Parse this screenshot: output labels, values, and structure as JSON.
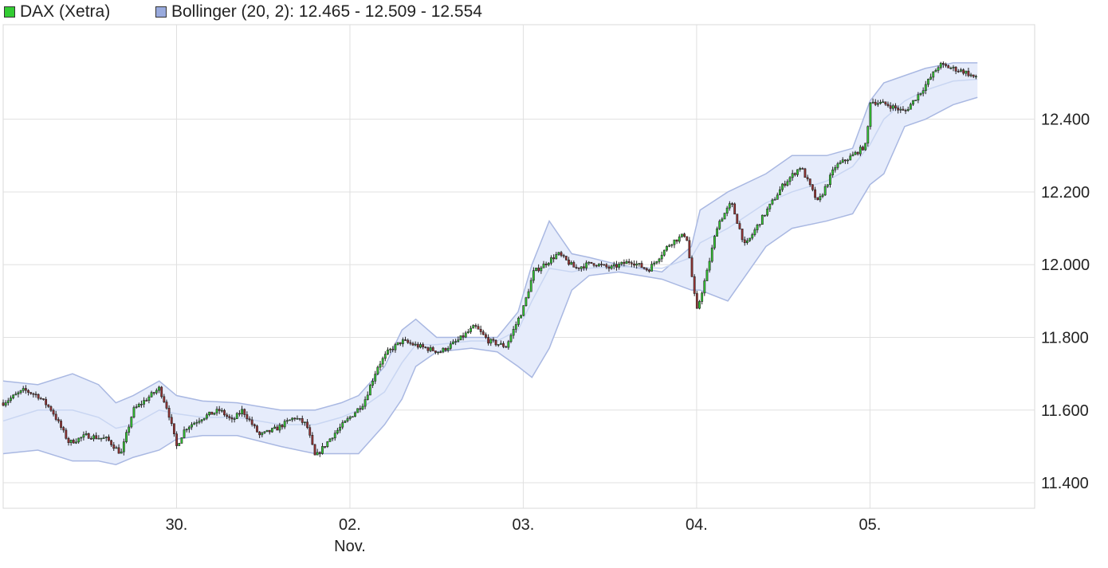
{
  "legend": {
    "series": {
      "label": "DAX (Xetra)",
      "color": "#33cc33"
    },
    "bands": {
      "label": "Bollinger (20, 2): 12.465 - 12.509 - 12.554",
      "color": "#99aadd"
    }
  },
  "chart_data": {
    "type": "candlestick",
    "series_name": "DAX (Xetra)",
    "indicator": "Bollinger (20, 2)",
    "indicator_values": {
      "lower": 12.465,
      "middle": 12.509,
      "upper": 12.554
    },
    "ylim": [
      11330,
      12660
    ],
    "y_ticks": [
      {
        "value": 11400,
        "label": "11.400"
      },
      {
        "value": 11600,
        "label": "11.600"
      },
      {
        "value": 11800,
        "label": "11.800"
      },
      {
        "value": 12000,
        "label": "12.000"
      },
      {
        "value": 12200,
        "label": "12.200"
      },
      {
        "value": 12400,
        "label": "12.400"
      }
    ],
    "x_range_days": [
      -1.0,
      4.95
    ],
    "x_ticks": [
      {
        "day": 0,
        "label": "30.",
        "sublabel": ""
      },
      {
        "day": 1,
        "label": "02.",
        "sublabel": "Nov."
      },
      {
        "day": 2,
        "label": "03.",
        "sublabel": ""
      },
      {
        "day": 3,
        "label": "04.",
        "sublabel": ""
      },
      {
        "day": 4,
        "label": "05.",
        "sublabel": ""
      }
    ],
    "grid": true,
    "up_color": "#33cc33",
    "down_color": "#993333",
    "band_fill": "#e6ecfb",
    "band_line": "#a9b8e2",
    "mid_line": "#c9d6f2",
    "price_path": [
      [
        -1.0,
        11620
      ],
      [
        -0.88,
        11655
      ],
      [
        -0.8,
        11640
      ],
      [
        -0.72,
        11600
      ],
      [
        -0.62,
        11510
      ],
      [
        -0.52,
        11530
      ],
      [
        -0.4,
        11520
      ],
      [
        -0.32,
        11480
      ],
      [
        -0.25,
        11600
      ],
      [
        -0.15,
        11640
      ],
      [
        -0.1,
        11660
      ],
      [
        -0.05,
        11600
      ],
      [
        0.0,
        11500
      ],
      [
        0.05,
        11550
      ],
      [
        0.15,
        11580
      ],
      [
        0.25,
        11600
      ],
      [
        0.32,
        11570
      ],
      [
        0.38,
        11600
      ],
      [
        0.48,
        11530
      ],
      [
        0.58,
        11550
      ],
      [
        0.68,
        11580
      ],
      [
        0.75,
        11560
      ],
      [
        0.8,
        11470
      ],
      [
        0.9,
        11530
      ],
      [
        1.0,
        11580
      ],
      [
        1.08,
        11620
      ],
      [
        1.16,
        11720
      ],
      [
        1.22,
        11760
      ],
      [
        1.3,
        11790
      ],
      [
        1.4,
        11775
      ],
      [
        1.52,
        11760
      ],
      [
        1.62,
        11790
      ],
      [
        1.72,
        11830
      ],
      [
        1.8,
        11790
      ],
      [
        1.9,
        11775
      ],
      [
        2.0,
        11880
      ],
      [
        2.06,
        11980
      ],
      [
        2.12,
        12000
      ],
      [
        2.2,
        12030
      ],
      [
        2.3,
        11990
      ],
      [
        2.4,
        12005
      ],
      [
        2.5,
        11990
      ],
      [
        2.62,
        12010
      ],
      [
        2.72,
        11985
      ],
      [
        2.85,
        12060
      ],
      [
        2.94,
        12085
      ],
      [
        3.0,
        11870
      ],
      [
        3.06,
        11980
      ],
      [
        3.12,
        12110
      ],
      [
        3.2,
        12170
      ],
      [
        3.28,
        12050
      ],
      [
        3.38,
        12130
      ],
      [
        3.5,
        12220
      ],
      [
        3.6,
        12270
      ],
      [
        3.7,
        12170
      ],
      [
        3.8,
        12270
      ],
      [
        3.9,
        12300
      ],
      [
        3.98,
        12330
      ],
      [
        4.0,
        12450
      ],
      [
        4.1,
        12440
      ],
      [
        4.2,
        12420
      ],
      [
        4.3,
        12480
      ],
      [
        4.4,
        12550
      ],
      [
        4.55,
        12530
      ],
      [
        4.62,
        12510
      ]
    ],
    "bollinger": {
      "x": [
        -1.0,
        -0.8,
        -0.6,
        -0.45,
        -0.35,
        -0.25,
        -0.1,
        0.0,
        0.15,
        0.35,
        0.6,
        0.8,
        0.95,
        1.05,
        1.2,
        1.3,
        1.38,
        1.5,
        1.7,
        1.85,
        1.97,
        2.05,
        2.15,
        2.28,
        2.38,
        2.55,
        2.8,
        2.97,
        3.02,
        3.18,
        3.4,
        3.55,
        3.75,
        3.9,
        4.0,
        4.08,
        4.2,
        4.32,
        4.48,
        4.62
      ],
      "upper": [
        11680,
        11670,
        11700,
        11670,
        11620,
        11640,
        11680,
        11640,
        11625,
        11620,
        11600,
        11600,
        11620,
        11640,
        11720,
        11820,
        11850,
        11800,
        11800,
        11800,
        11870,
        12000,
        12120,
        12030,
        12020,
        12000,
        11980,
        12050,
        12150,
        12200,
        12250,
        12300,
        12300,
        12320,
        12450,
        12500,
        12520,
        12540,
        12555,
        12555
      ],
      "middle": [
        11570,
        11600,
        11600,
        11580,
        11550,
        11560,
        11600,
        11590,
        11580,
        11580,
        11560,
        11560,
        11580,
        11600,
        11650,
        11730,
        11780,
        11780,
        11790,
        11790,
        11820,
        11900,
        11990,
        11980,
        11990,
        11995,
        11990,
        12020,
        12060,
        12100,
        12170,
        12200,
        12230,
        12270,
        12330,
        12400,
        12450,
        12480,
        12505,
        12510
      ],
      "lower": [
        11480,
        11490,
        11460,
        11460,
        11450,
        11470,
        11490,
        11520,
        11530,
        11530,
        11500,
        11480,
        11480,
        11480,
        11560,
        11630,
        11720,
        11760,
        11770,
        11760,
        11720,
        11690,
        11770,
        11930,
        11970,
        11980,
        11960,
        11930,
        11930,
        11900,
        12050,
        12100,
        12120,
        12140,
        12220,
        12250,
        12380,
        12400,
        12440,
        12460
      ]
    }
  }
}
